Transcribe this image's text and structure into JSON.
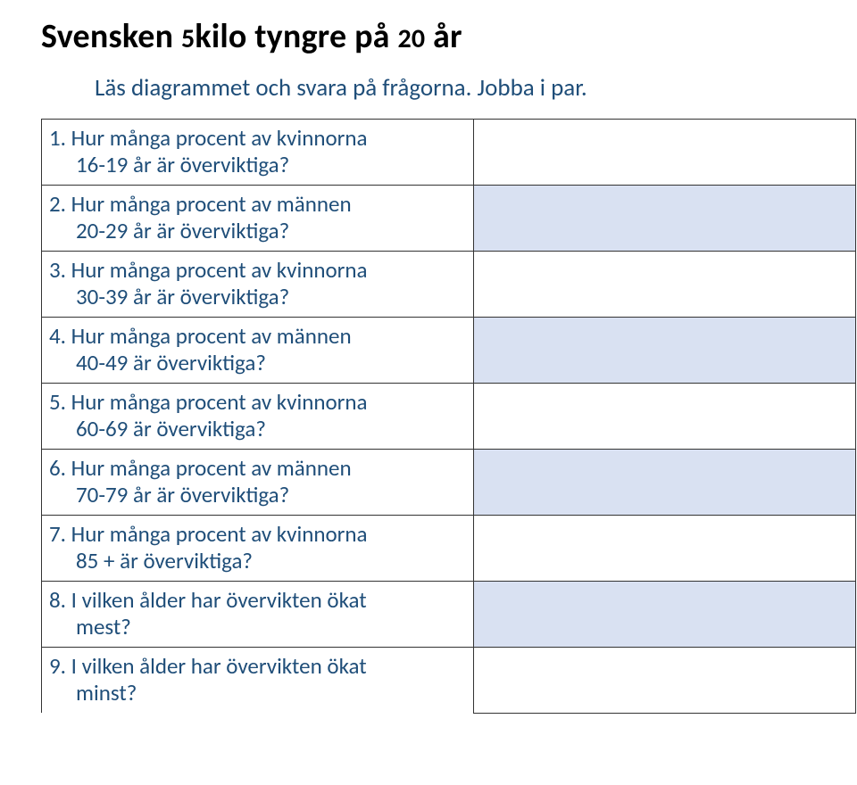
{
  "title_parts": {
    "a": "Svensken ",
    "b": "5",
    "c": "kilo tyngre på ",
    "d": "20",
    "e": " år"
  },
  "subtitle": "Läs diagrammet och svara på frågorna. Jobba i par.",
  "colors": {
    "heading_text": "#000000",
    "body_text": "#1f4e79",
    "border": "#333333",
    "row_alt_bg": "#d9e1f2",
    "row_bg": "#ffffff",
    "page_bg": "#ffffff"
  },
  "font": {
    "title_size_pt": 28,
    "title_small_pt": 22,
    "subtitle_size_pt": 20,
    "question_size_pt": 19
  },
  "questions": [
    {
      "num": "1.",
      "line1": "Hur många procent av kvinnorna",
      "line2": "16-19 år är överviktiga?"
    },
    {
      "num": "2.",
      "line1": "Hur många procent av männen",
      "line2": "20-29 år är överviktiga?"
    },
    {
      "num": "3.",
      "line1": "Hur många procent av kvinnorna",
      "line2": "30-39 år är överviktiga?"
    },
    {
      "num": "4.",
      "line1": "Hur många procent  av männen",
      "line2": "40-49 är överviktiga?"
    },
    {
      "num": "5.",
      "line1": "Hur många procent av kvinnorna",
      "line2": "60-69 är överviktiga?"
    },
    {
      "num": "6.",
      "line1": "Hur många procent av männen",
      "line2": "70-79 år är överviktiga?"
    },
    {
      "num": "7.",
      "line1": "Hur många procent av kvinnorna",
      "line2": "85 + är överviktiga?"
    },
    {
      "num": "8.",
      "line1": "I vilken ålder har övervikten ökat",
      "line2": "mest?"
    },
    {
      "num": "9.",
      "line1": "I vilken ålder har övervikten ökat",
      "line2": "minst?"
    }
  ]
}
